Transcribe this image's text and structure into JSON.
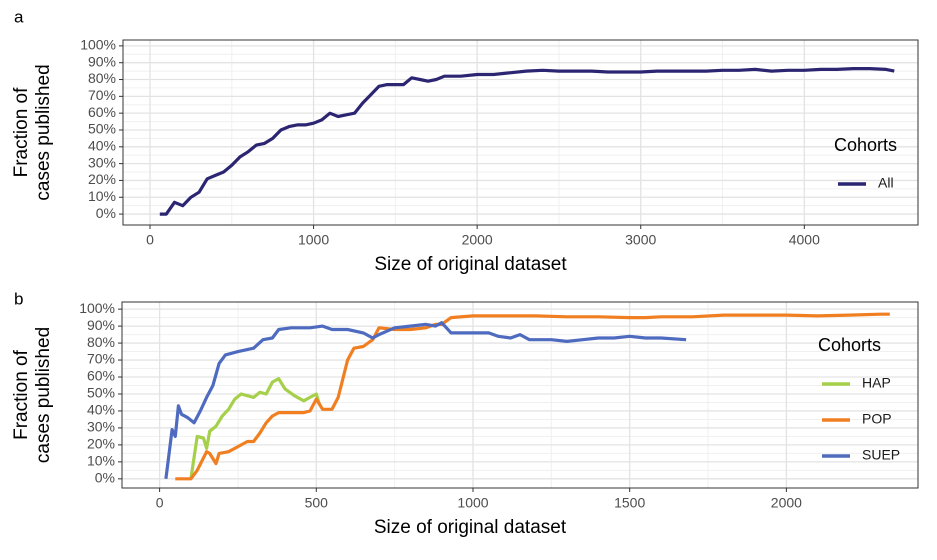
{
  "chart_data": [
    {
      "type": "line",
      "panel_label": "a",
      "xlabel": "Size of original dataset",
      "ylabel": [
        "Fraction of",
        "cases published"
      ],
      "legend_title": "Cohorts",
      "legend": "right",
      "grid": true,
      "xlim": [
        -165,
        4695
      ],
      "xticks": [
        0,
        1000,
        2000,
        3000,
        4000
      ],
      "ylim": [
        -6.5,
        103.5
      ],
      "yticks": [
        {
          "value": 0,
          "label": "0%"
        },
        {
          "value": 10,
          "label": "10%"
        },
        {
          "value": 20,
          "label": "20%"
        },
        {
          "value": 30,
          "label": "30%"
        },
        {
          "value": 40,
          "label": "40%"
        },
        {
          "value": 50,
          "label": "50%"
        },
        {
          "value": 60,
          "label": "60%"
        },
        {
          "value": 70,
          "label": "70%"
        },
        {
          "value": 80,
          "label": "80%"
        },
        {
          "value": 90,
          "label": "90%"
        },
        {
          "value": 100,
          "label": "100%"
        }
      ],
      "series": [
        {
          "name": "All",
          "color": "#2c2672",
          "x": [
            60,
            100,
            150,
            200,
            250,
            300,
            350,
            400,
            450,
            500,
            550,
            600,
            650,
            700,
            750,
            800,
            850,
            900,
            950,
            1000,
            1050,
            1100,
            1150,
            1200,
            1250,
            1300,
            1350,
            1400,
            1450,
            1500,
            1550,
            1600,
            1650,
            1700,
            1750,
            1800,
            1900,
            2000,
            2100,
            2200,
            2300,
            2400,
            2500,
            2600,
            2700,
            2800,
            2900,
            3000,
            3100,
            3200,
            3300,
            3400,
            3500,
            3600,
            3700,
            3800,
            3900,
            4000,
            4100,
            4200,
            4300,
            4400,
            4500,
            4550
          ],
          "values": [
            0,
            0,
            7,
            5,
            10,
            13,
            21,
            23,
            25,
            29,
            34,
            37,
            41,
            42,
            45,
            50,
            52,
            53,
            53,
            54,
            56,
            60,
            58,
            59,
            60,
            66,
            71,
            76,
            77,
            77,
            77,
            81,
            80,
            79,
            80,
            82,
            82,
            83,
            83,
            84,
            85,
            85.5,
            85,
            85,
            85,
            84.5,
            84.5,
            84.5,
            85,
            85,
            85,
            85,
            85.5,
            85.5,
            86,
            85,
            85.5,
            85.5,
            86,
            86,
            86.5,
            86.5,
            86,
            85
          ]
        }
      ]
    },
    {
      "type": "line",
      "panel_label": "b",
      "xlabel": "Size of original dataset",
      "ylabel": [
        "Fraction of",
        "cases published"
      ],
      "legend_title": "Cohorts",
      "legend": "right",
      "grid": true,
      "xlim": [
        -120,
        2420
      ],
      "xticks": [
        0,
        500,
        1000,
        1500,
        2000
      ],
      "ylim": [
        -5.4,
        104.2
      ],
      "yticks": [
        {
          "value": 0,
          "label": "0%"
        },
        {
          "value": 10,
          "label": "10%"
        },
        {
          "value": 20,
          "label": "20%"
        },
        {
          "value": 30,
          "label": "30%"
        },
        {
          "value": 40,
          "label": "40%"
        },
        {
          "value": 50,
          "label": "50%"
        },
        {
          "value": 60,
          "label": "60%"
        },
        {
          "value": 70,
          "label": "70%"
        },
        {
          "value": 80,
          "label": "80%"
        },
        {
          "value": 90,
          "label": "90%"
        },
        {
          "value": 100,
          "label": "100%"
        }
      ],
      "series": [
        {
          "name": "HAP",
          "color": "#a6d04a",
          "x": [
            100,
            120,
            140,
            150,
            160,
            180,
            200,
            220,
            240,
            260,
            280,
            300,
            320,
            340,
            360,
            380,
            400,
            430,
            460,
            480,
            500,
            510
          ],
          "values": [
            0,
            25,
            24,
            18,
            28,
            31,
            37,
            41,
            47,
            50,
            49,
            48,
            51,
            50,
            57,
            59,
            53,
            49,
            46,
            48,
            50,
            44
          ]
        },
        {
          "name": "POP",
          "color": "#f07f22",
          "x": [
            50,
            100,
            120,
            150,
            160,
            180,
            190,
            220,
            250,
            280,
            300,
            320,
            340,
            360,
            380,
            420,
            460,
            480,
            500,
            520,
            550,
            570,
            600,
            620,
            650,
            680,
            700,
            750,
            800,
            850,
            880,
            900,
            930,
            1000,
            1100,
            1200,
            1300,
            1400,
            1500,
            1550,
            1600,
            1700,
            1800,
            1900,
            2000,
            2100,
            2200,
            2300,
            2330
          ],
          "values": [
            0,
            0,
            5,
            16,
            15,
            9,
            15,
            16,
            19,
            22,
            22,
            27,
            33,
            37,
            39,
            39,
            39,
            40,
            47,
            41,
            41,
            48,
            70,
            77,
            78,
            82,
            89,
            88,
            88,
            89,
            91,
            91,
            95,
            96,
            96,
            96,
            95.5,
            95.5,
            95,
            95,
            95.5,
            95.5,
            96.5,
            96.5,
            96.5,
            96,
            96.5,
            97,
            97
          ]
        },
        {
          "name": "SUEP",
          "color": "#4e6bbf",
          "x": [
            20,
            40,
            50,
            60,
            70,
            90,
            110,
            130,
            150,
            170,
            190,
            210,
            250,
            300,
            330,
            360,
            380,
            420,
            480,
            520,
            550,
            600,
            650,
            680,
            700,
            750,
            800,
            850,
            880,
            900,
            930,
            980,
            1000,
            1050,
            1080,
            1120,
            1150,
            1180,
            1250,
            1300,
            1350,
            1400,
            1450,
            1500,
            1550,
            1600,
            1680
          ],
          "values": [
            0,
            29,
            25,
            43,
            38,
            36,
            33,
            40,
            48,
            55,
            68,
            73,
            75,
            77,
            82,
            83,
            88,
            89,
            89,
            90,
            88,
            88,
            86,
            83,
            85,
            89,
            90,
            91,
            90,
            92,
            86,
            86,
            86,
            86,
            84,
            83,
            85,
            82,
            82,
            81,
            82,
            83,
            83,
            84,
            83,
            83,
            82
          ]
        }
      ]
    }
  ]
}
